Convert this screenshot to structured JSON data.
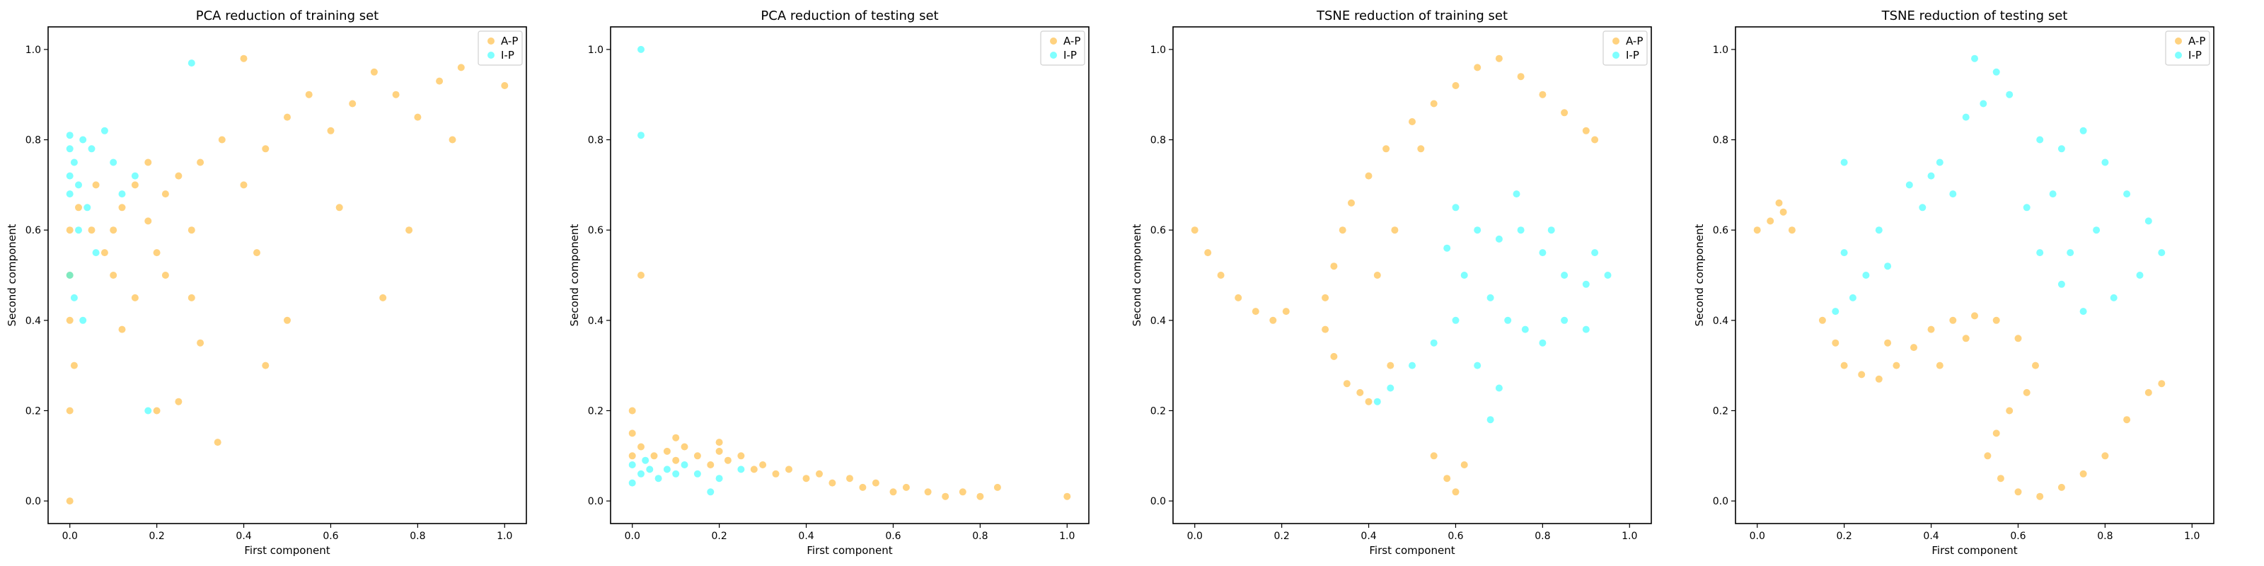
{
  "colors": {
    "A-P": "#ffa500",
    "I-P": "#00ffff"
  },
  "chart_data": [
    {
      "type": "scatter",
      "title": "PCA reduction of training set",
      "xlabel": "First component",
      "ylabel": "Second component",
      "xlim": [
        -0.05,
        1.05
      ],
      "ylim": [
        -0.05,
        1.05
      ],
      "xticks": [
        "0.0",
        "0.2",
        "0.4",
        "0.6",
        "0.8",
        "1.0"
      ],
      "yticks": [
        "0.0",
        "0.2",
        "0.4",
        "0.6",
        "0.8",
        "1.0"
      ],
      "legend": "top-right",
      "grid": false,
      "series": [
        {
          "name": "A-P",
          "points": [
            [
              0.0,
              0.0
            ],
            [
              0.0,
              0.2
            ],
            [
              0.01,
              0.3
            ],
            [
              0.0,
              0.4
            ],
            [
              0.0,
              0.5
            ],
            [
              0.0,
              0.6
            ],
            [
              0.02,
              0.65
            ],
            [
              0.05,
              0.6
            ],
            [
              0.08,
              0.55
            ],
            [
              0.1,
              0.6
            ],
            [
              0.12,
              0.65
            ],
            [
              0.15,
              0.7
            ],
            [
              0.18,
              0.62
            ],
            [
              0.2,
              0.55
            ],
            [
              0.22,
              0.68
            ],
            [
              0.25,
              0.72
            ],
            [
              0.28,
              0.6
            ],
            [
              0.3,
              0.75
            ],
            [
              0.35,
              0.8
            ],
            [
              0.4,
              0.7
            ],
            [
              0.45,
              0.78
            ],
            [
              0.5,
              0.85
            ],
            [
              0.55,
              0.9
            ],
            [
              0.6,
              0.82
            ],
            [
              0.65,
              0.88
            ],
            [
              0.7,
              0.95
            ],
            [
              0.75,
              0.9
            ],
            [
              0.8,
              0.85
            ],
            [
              0.85,
              0.93
            ],
            [
              0.9,
              0.96
            ],
            [
              1.0,
              0.92
            ],
            [
              0.88,
              0.8
            ],
            [
              0.72,
              0.45
            ],
            [
              0.5,
              0.4
            ],
            [
              0.45,
              0.3
            ],
            [
              0.3,
              0.35
            ],
            [
              0.25,
              0.22
            ],
            [
              0.2,
              0.2
            ],
            [
              0.34,
              0.13
            ],
            [
              0.15,
              0.45
            ],
            [
              0.12,
              0.38
            ],
            [
              0.1,
              0.5
            ],
            [
              0.06,
              0.7
            ],
            [
              0.18,
              0.75
            ],
            [
              0.22,
              0.5
            ],
            [
              0.28,
              0.45
            ],
            [
              0.4,
              0.98
            ],
            [
              0.43,
              0.55
            ],
            [
              0.62,
              0.65
            ],
            [
              0.78,
              0.6
            ]
          ]
        },
        {
          "name": "I-P",
          "points": [
            [
              0.0,
              0.81
            ],
            [
              0.0,
              0.78
            ],
            [
              0.01,
              0.75
            ],
            [
              0.0,
              0.72
            ],
            [
              0.02,
              0.7
            ],
            [
              0.0,
              0.68
            ],
            [
              0.03,
              0.8
            ],
            [
              0.05,
              0.78
            ],
            [
              0.08,
              0.82
            ],
            [
              0.1,
              0.75
            ],
            [
              0.04,
              0.65
            ],
            [
              0.02,
              0.6
            ],
            [
              0.06,
              0.55
            ],
            [
              0.0,
              0.5
            ],
            [
              0.01,
              0.45
            ],
            [
              0.03,
              0.4
            ],
            [
              0.12,
              0.68
            ],
            [
              0.15,
              0.72
            ],
            [
              0.28,
              0.97
            ],
            [
              0.18,
              0.2
            ]
          ]
        }
      ]
    },
    {
      "type": "scatter",
      "title": "PCA reduction of testing set",
      "xlabel": "First component",
      "ylabel": "Second component",
      "xlim": [
        -0.05,
        1.05
      ],
      "ylim": [
        -0.05,
        1.05
      ],
      "xticks": [
        "0.0",
        "0.2",
        "0.4",
        "0.6",
        "0.8",
        "1.0"
      ],
      "yticks": [
        "0.0",
        "0.2",
        "0.4",
        "0.6",
        "0.8",
        "1.0"
      ],
      "legend": "top-right",
      "grid": false,
      "series": [
        {
          "name": "A-P",
          "points": [
            [
              0.0,
              0.1
            ],
            [
              0.0,
              0.15
            ],
            [
              0.0,
              0.2
            ],
            [
              0.02,
              0.12
            ],
            [
              0.05,
              0.1
            ],
            [
              0.08,
              0.11
            ],
            [
              0.1,
              0.09
            ],
            [
              0.12,
              0.12
            ],
            [
              0.15,
              0.1
            ],
            [
              0.18,
              0.08
            ],
            [
              0.2,
              0.11
            ],
            [
              0.22,
              0.09
            ],
            [
              0.25,
              0.1
            ],
            [
              0.28,
              0.07
            ],
            [
              0.3,
              0.08
            ],
            [
              0.33,
              0.06
            ],
            [
              0.36,
              0.07
            ],
            [
              0.4,
              0.05
            ],
            [
              0.43,
              0.06
            ],
            [
              0.46,
              0.04
            ],
            [
              0.5,
              0.05
            ],
            [
              0.53,
              0.03
            ],
            [
              0.56,
              0.04
            ],
            [
              0.6,
              0.02
            ],
            [
              0.63,
              0.03
            ],
            [
              0.68,
              0.02
            ],
            [
              0.72,
              0.01
            ],
            [
              0.76,
              0.02
            ],
            [
              0.8,
              0.01
            ],
            [
              0.84,
              0.03
            ],
            [
              1.0,
              0.01
            ],
            [
              0.02,
              0.5
            ],
            [
              0.1,
              0.14
            ],
            [
              0.2,
              0.13
            ]
          ]
        },
        {
          "name": "I-P",
          "points": [
            [
              0.02,
              1.0
            ],
            [
              0.02,
              0.81
            ],
            [
              0.0,
              0.08
            ],
            [
              0.02,
              0.06
            ],
            [
              0.04,
              0.07
            ],
            [
              0.06,
              0.05
            ],
            [
              0.08,
              0.07
            ],
            [
              0.1,
              0.06
            ],
            [
              0.12,
              0.08
            ],
            [
              0.15,
              0.06
            ],
            [
              0.2,
              0.05
            ],
            [
              0.25,
              0.07
            ],
            [
              0.0,
              0.04
            ],
            [
              0.03,
              0.09
            ],
            [
              0.18,
              0.02
            ]
          ]
        }
      ]
    },
    {
      "type": "scatter",
      "title": "TSNE reduction of training set",
      "xlabel": "First component",
      "ylabel": "Second component",
      "xlim": [
        -0.05,
        1.05
      ],
      "ylim": [
        -0.05,
        1.05
      ],
      "xticks": [
        "0.0",
        "0.2",
        "0.4",
        "0.6",
        "0.8",
        "1.0"
      ],
      "yticks": [
        "0.0",
        "0.2",
        "0.4",
        "0.6",
        "0.8",
        "1.0"
      ],
      "legend": "top-right",
      "grid": false,
      "series": [
        {
          "name": "A-P",
          "points": [
            [
              0.0,
              0.6
            ],
            [
              0.03,
              0.55
            ],
            [
              0.06,
              0.5
            ],
            [
              0.1,
              0.45
            ],
            [
              0.14,
              0.42
            ],
            [
              0.18,
              0.4
            ],
            [
              0.21,
              0.42
            ],
            [
              0.3,
              0.45
            ],
            [
              0.32,
              0.52
            ],
            [
              0.34,
              0.6
            ],
            [
              0.36,
              0.66
            ],
            [
              0.4,
              0.72
            ],
            [
              0.44,
              0.78
            ],
            [
              0.5,
              0.84
            ],
            [
              0.55,
              0.88
            ],
            [
              0.6,
              0.92
            ],
            [
              0.65,
              0.96
            ],
            [
              0.7,
              0.98
            ],
            [
              0.75,
              0.94
            ],
            [
              0.8,
              0.9
            ],
            [
              0.85,
              0.86
            ],
            [
              0.9,
              0.82
            ],
            [
              0.92,
              0.8
            ],
            [
              0.3,
              0.38
            ],
            [
              0.32,
              0.32
            ],
            [
              0.35,
              0.26
            ],
            [
              0.38,
              0.24
            ],
            [
              0.4,
              0.22
            ],
            [
              0.55,
              0.1
            ],
            [
              0.58,
              0.05
            ],
            [
              0.6,
              0.02
            ],
            [
              0.62,
              0.08
            ],
            [
              0.45,
              0.3
            ],
            [
              0.42,
              0.5
            ],
            [
              0.46,
              0.6
            ],
            [
              0.52,
              0.78
            ]
          ]
        },
        {
          "name": "I-P",
          "points": [
            [
              0.6,
              0.65
            ],
            [
              0.65,
              0.6
            ],
            [
              0.7,
              0.58
            ],
            [
              0.75,
              0.6
            ],
            [
              0.8,
              0.55
            ],
            [
              0.85,
              0.5
            ],
            [
              0.9,
              0.48
            ],
            [
              0.95,
              0.5
            ],
            [
              0.62,
              0.5
            ],
            [
              0.68,
              0.45
            ],
            [
              0.72,
              0.4
            ],
            [
              0.76,
              0.38
            ],
            [
              0.8,
              0.35
            ],
            [
              0.85,
              0.4
            ],
            [
              0.6,
              0.4
            ],
            [
              0.55,
              0.35
            ],
            [
              0.5,
              0.3
            ],
            [
              0.45,
              0.25
            ],
            [
              0.42,
              0.22
            ],
            [
              0.65,
              0.3
            ],
            [
              0.7,
              0.25
            ],
            [
              0.68,
              0.18
            ],
            [
              0.74,
              0.68
            ],
            [
              0.58,
              0.56
            ],
            [
              0.9,
              0.38
            ],
            [
              0.82,
              0.6
            ],
            [
              0.92,
              0.55
            ]
          ]
        }
      ]
    },
    {
      "type": "scatter",
      "title": "TSNE reduction of testing set",
      "xlabel": "First component",
      "ylabel": "Second component",
      "xlim": [
        -0.05,
        1.05
      ],
      "ylim": [
        -0.05,
        1.05
      ],
      "xticks": [
        "0.0",
        "0.2",
        "0.4",
        "0.6",
        "0.8",
        "1.0"
      ],
      "yticks": [
        "0.0",
        "0.2",
        "0.4",
        "0.6",
        "0.8",
        "1.0"
      ],
      "legend": "top-right",
      "grid": false,
      "series": [
        {
          "name": "A-P",
          "points": [
            [
              0.0,
              0.6
            ],
            [
              0.03,
              0.62
            ],
            [
              0.06,
              0.64
            ],
            [
              0.08,
              0.6
            ],
            [
              0.05,
              0.66
            ],
            [
              0.15,
              0.4
            ],
            [
              0.18,
              0.35
            ],
            [
              0.2,
              0.3
            ],
            [
              0.24,
              0.28
            ],
            [
              0.28,
              0.27
            ],
            [
              0.32,
              0.3
            ],
            [
              0.36,
              0.34
            ],
            [
              0.4,
              0.38
            ],
            [
              0.45,
              0.4
            ],
            [
              0.5,
              0.41
            ],
            [
              0.55,
              0.4
            ],
            [
              0.6,
              0.36
            ],
            [
              0.64,
              0.3
            ],
            [
              0.62,
              0.24
            ],
            [
              0.58,
              0.2
            ],
            [
              0.55,
              0.15
            ],
            [
              0.53,
              0.1
            ],
            [
              0.56,
              0.05
            ],
            [
              0.6,
              0.02
            ],
            [
              0.65,
              0.01
            ],
            [
              0.7,
              0.03
            ],
            [
              0.75,
              0.06
            ],
            [
              0.8,
              0.1
            ],
            [
              0.85,
              0.18
            ],
            [
              0.9,
              0.24
            ],
            [
              0.93,
              0.26
            ],
            [
              0.42,
              0.3
            ],
            [
              0.3,
              0.35
            ],
            [
              0.48,
              0.36
            ]
          ]
        },
        {
          "name": "I-P",
          "points": [
            [
              0.5,
              0.98
            ],
            [
              0.55,
              0.95
            ],
            [
              0.52,
              0.88
            ],
            [
              0.48,
              0.85
            ],
            [
              0.58,
              0.9
            ],
            [
              0.4,
              0.72
            ],
            [
              0.45,
              0.68
            ],
            [
              0.35,
              0.7
            ],
            [
              0.38,
              0.65
            ],
            [
              0.42,
              0.75
            ],
            [
              0.65,
              0.8
            ],
            [
              0.7,
              0.78
            ],
            [
              0.75,
              0.82
            ],
            [
              0.8,
              0.75
            ],
            [
              0.85,
              0.68
            ],
            [
              0.9,
              0.62
            ],
            [
              0.93,
              0.55
            ],
            [
              0.88,
              0.5
            ],
            [
              0.82,
              0.45
            ],
            [
              0.75,
              0.42
            ],
            [
              0.7,
              0.48
            ],
            [
              0.65,
              0.55
            ],
            [
              0.62,
              0.65
            ],
            [
              0.68,
              0.68
            ],
            [
              0.78,
              0.6
            ],
            [
              0.72,
              0.55
            ],
            [
              0.25,
              0.5
            ],
            [
              0.22,
              0.45
            ],
            [
              0.18,
              0.42
            ],
            [
              0.2,
              0.55
            ],
            [
              0.28,
              0.6
            ],
            [
              0.3,
              0.52
            ],
            [
              0.2,
              0.75
            ]
          ]
        }
      ]
    }
  ]
}
